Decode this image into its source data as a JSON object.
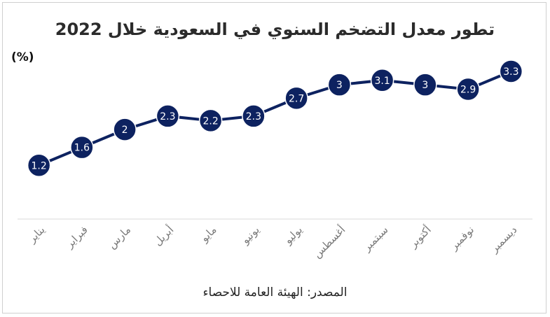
{
  "chart_data": {
    "type": "line",
    "title": "تطور معدل التضخم السنوي في السعودية خلال 2022",
    "ylabel": "(%)",
    "source": "المصدر: الهيئة العامة للاحصاء",
    "categories": [
      "يناير",
      "فبراير",
      "مارس",
      "أبريل",
      "مايو",
      "يونيو",
      "يوليو",
      "أغسطس",
      "سبتمبر",
      "أكتوبر",
      "نوفمبر",
      "ديسمبر"
    ],
    "values": [
      1.2,
      1.6,
      2,
      2.3,
      2.2,
      2.3,
      2.7,
      3,
      3.1,
      3,
      2.9,
      3.3
    ],
    "value_labels": [
      "1.2",
      "1.6",
      "2",
      "2.3",
      "2.2",
      "2.3",
      "2.7",
      "3",
      "3.1",
      "3",
      "2.9",
      "3.3"
    ],
    "ylim": [
      0,
      3.8
    ],
    "grid": false,
    "line_color": "#0d2260",
    "marker_color": "#0d2260"
  }
}
